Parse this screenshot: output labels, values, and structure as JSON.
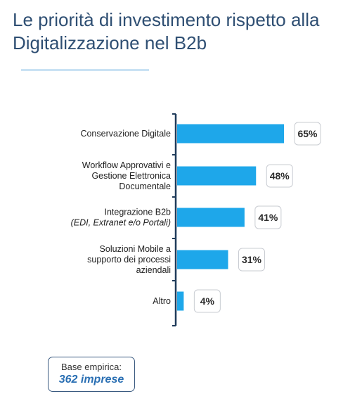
{
  "title": {
    "line1": "Le priorità di investimento rispetto alla",
    "line2": "Digitalizzazione nel B2b"
  },
  "chart_data": {
    "type": "bar",
    "orientation": "horizontal",
    "categories": [
      [
        "Conservazione Digitale"
      ],
      [
        "Workflow Approvativi e",
        "Gestione Elettronica",
        "Documentale"
      ],
      [
        "Integrazione B2b",
        "(EDI, Extranet e/o Portali)"
      ],
      [
        "Soluzioni Mobile a",
        "supporto dei processi",
        "aziendali"
      ],
      [
        "Altro"
      ]
    ],
    "values": [
      65,
      48,
      41,
      31,
      4
    ],
    "value_labels": [
      "65%",
      "48%",
      "41%",
      "31%",
      "4%"
    ],
    "unit": "%",
    "xlim": [
      0,
      100
    ],
    "bar_color": "#1ea7ea",
    "axis_color": "#1f3b5a",
    "grid": false,
    "legend": "none"
  },
  "base": {
    "label": "Base empirica:",
    "value": "362 imprese"
  },
  "colors": {
    "title": "#2f4f73",
    "rule": "#2e8fd4",
    "label_box_border": "#3a5a80"
  }
}
